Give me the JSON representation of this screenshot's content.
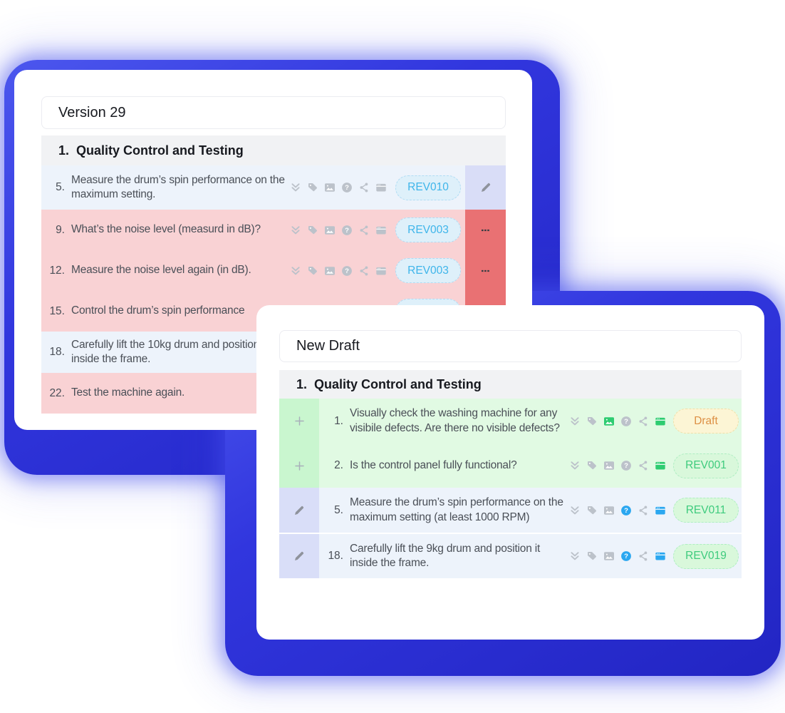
{
  "icon_order": [
    "double-chevron-down",
    "tag",
    "image",
    "question",
    "share",
    "card"
  ],
  "colors": {
    "accent_blue": "#2d31d8",
    "added_green_row": "#e1fae3",
    "edited_blue_row": "#edf3fb",
    "removed_pink_row": "#f9d2d4",
    "remove_column_red": "#e97173",
    "icon_gray": "#bcc2ca",
    "icon_green": "#2ecc71",
    "icon_blue": "#2ba7f0",
    "badge_blue_text": "#3eb5ea",
    "badge_green_text": "#3ecb7d",
    "badge_draft_text": "#dd8f44"
  },
  "back_card": {
    "title": "Version 29",
    "section_number": "1.",
    "section_title": "Quality Control and Testing",
    "rows": [
      {
        "number": "5.",
        "text": "Measure the drum’s spin performance on the maximum setting.",
        "change_type": "edited",
        "badge": "REV010",
        "badge_color": "blue",
        "icon_colors": [
          "gray",
          "gray",
          "gray",
          "gray",
          "gray",
          "gray"
        ]
      },
      {
        "number": "9.",
        "text": "What’s the noise level (measurd in dB)?",
        "change_type": "removed",
        "badge": "REV003",
        "badge_color": "blue",
        "icon_colors": [
          "gray",
          "gray",
          "gray",
          "gray",
          "gray",
          "gray"
        ]
      },
      {
        "number": "12.",
        "text": "Measure the noise level again (in dB).",
        "change_type": "removed",
        "badge": "REV003",
        "badge_color": "blue",
        "icon_colors": [
          "gray",
          "gray",
          "gray",
          "gray",
          "gray",
          "gray"
        ]
      },
      {
        "number": "15.",
        "text": "Control the drum’s spin performance",
        "change_type": "removed",
        "badge": "REV003",
        "badge_color": "blue",
        "icon_colors": [
          "gray",
          "gray",
          "gray",
          "gray",
          "gray",
          "gray"
        ]
      },
      {
        "number": "18.",
        "text": "Carefully lift the 10kg drum and position it inside the frame.",
        "change_type": "edited",
        "badge": "",
        "badge_color": "",
        "icon_colors": [
          "gray",
          "gray",
          "gray",
          "gray",
          "gray",
          "gray"
        ]
      },
      {
        "number": "22.",
        "text": "Test the machine again.",
        "change_type": "removed",
        "badge": "",
        "badge_color": "",
        "icon_colors": [
          "gray",
          "gray",
          "gray",
          "gray",
          "gray",
          "gray"
        ]
      }
    ]
  },
  "front_card": {
    "title": "New Draft",
    "section_number": "1.",
    "section_title": "Quality Control and Testing",
    "rows": [
      {
        "number": "1.",
        "text": "Visually check the washing machine for any visibile defects. Are there no visible defects?",
        "change_type": "added",
        "badge": "Draft",
        "badge_color": "draft",
        "icon_colors": [
          "gray",
          "gray",
          "green",
          "gray",
          "gray",
          "green"
        ]
      },
      {
        "number": "2.",
        "text": "Is the control panel fully functional?",
        "change_type": "added",
        "badge": "REV001",
        "badge_color": "green",
        "icon_colors": [
          "gray",
          "gray",
          "gray",
          "gray",
          "gray",
          "green"
        ]
      },
      {
        "number": "5.",
        "text": "Measure the drum’s spin performance on the maximum setting (at least 1000 RPM)",
        "change_type": "edited",
        "badge": "REV011",
        "badge_color": "green",
        "icon_colors": [
          "gray",
          "gray",
          "gray",
          "blue",
          "gray",
          "blue"
        ]
      },
      {
        "number": "18.",
        "text": "Carefully lift the 9kg drum and position it inside the frame.",
        "change_type": "edited",
        "badge": "REV019",
        "badge_color": "green",
        "icon_colors": [
          "gray",
          "gray",
          "gray",
          "blue",
          "gray",
          "blue"
        ]
      }
    ]
  }
}
